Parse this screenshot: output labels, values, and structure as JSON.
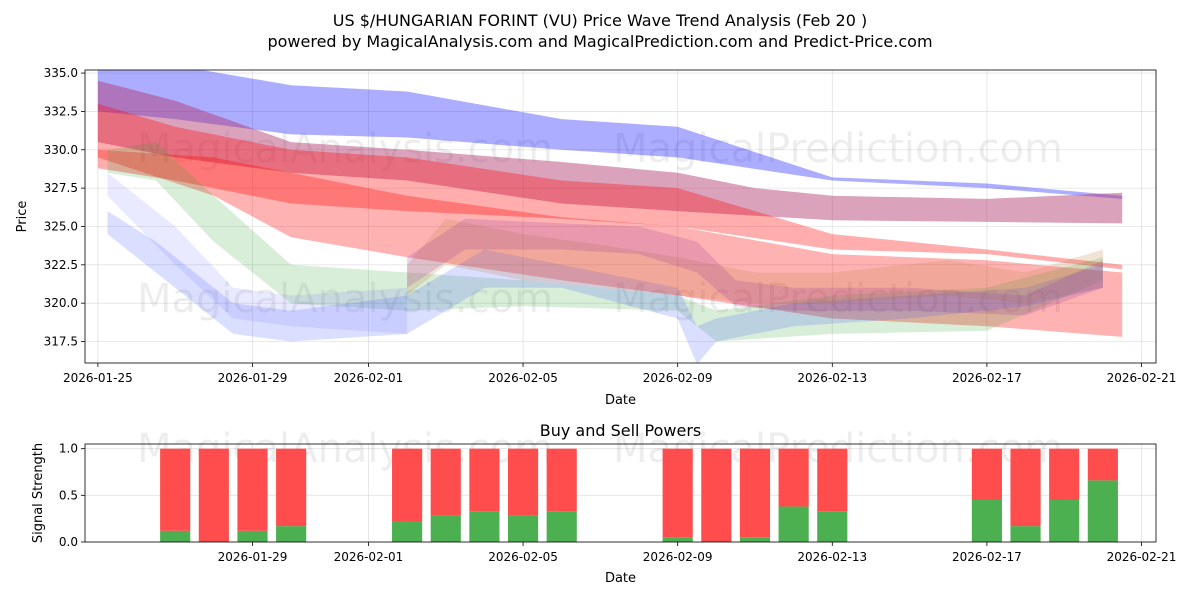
{
  "title_line1": "US $/HUNGARIAN FORINT (VU) Price Wave Trend Analysis (Feb 20 )",
  "title_line2": "powered by MagicalAnalysis.com and MagicalPrediction.com and Predict-Price.com",
  "watermarks": [
    "MagicalAnalysis.com",
    "MagicalPrediction.com"
  ],
  "chart_data": [
    {
      "type": "area",
      "title": "",
      "xlabel": "Date",
      "ylabel": "Price",
      "ylim": [
        316.1,
        335.2
      ],
      "xlim": [
        "2026-01-24T16:00",
        "2026-02-21T09:00"
      ],
      "grid": true,
      "xticks": [
        "2026-01-25",
        "2026-01-29",
        "2026-02-01",
        "2026-02-05",
        "2026-02-09",
        "2026-02-13",
        "2026-02-17",
        "2026-02-21"
      ],
      "yticks": [
        317.5,
        320.0,
        322.5,
        325.0,
        327.5,
        330.0,
        332.5,
        335.0
      ],
      "series": [
        {
          "name": "blue long-term band",
          "color": "#0000ff",
          "opacity": 0.32,
          "x": [
            "2026-01-25",
            "2026-01-27",
            "2026-01-30",
            "2026-02-02",
            "2026-02-06",
            "2026-02-09",
            "2026-02-13",
            "2026-02-17",
            "2026-02-20T12:00"
          ],
          "upper": [
            336.0,
            335.5,
            334.2,
            333.8,
            332.0,
            331.5,
            328.2,
            327.8,
            327.0
          ],
          "lower": [
            332.5,
            332.0,
            331.0,
            330.8,
            330.0,
            329.5,
            328.0,
            327.5,
            326.8
          ]
        },
        {
          "name": "purple long-term band",
          "color": "#b0306a",
          "opacity": 0.45,
          "x": [
            "2026-01-25",
            "2026-01-27",
            "2026-01-30",
            "2026-02-02",
            "2026-02-06",
            "2026-02-09",
            "2026-02-11",
            "2026-02-13",
            "2026-02-17",
            "2026-02-20T12:00"
          ],
          "upper": [
            334.5,
            333.2,
            330.5,
            330.0,
            329.2,
            328.5,
            327.5,
            327.0,
            326.8,
            327.2
          ],
          "lower": [
            330.5,
            329.5,
            328.5,
            328.0,
            326.5,
            326.0,
            325.7,
            325.4,
            325.3,
            325.2
          ]
        },
        {
          "name": "red long-term band",
          "color": "#ff0000",
          "opacity": 0.32,
          "x": [
            "2026-01-25",
            "2026-01-27",
            "2026-01-30",
            "2026-02-02",
            "2026-02-06",
            "2026-02-09",
            "2026-02-13",
            "2026-02-17",
            "2026-02-20T12:00"
          ],
          "upper": [
            333.0,
            331.5,
            330.0,
            329.5,
            328.0,
            327.5,
            324.5,
            323.5,
            322.5
          ],
          "lower": [
            328.8,
            328.0,
            326.5,
            326.0,
            325.5,
            325.0,
            323.5,
            323.2,
            322.2
          ]
        },
        {
          "name": "red wide band",
          "color": "#ff0000",
          "opacity": 0.3,
          "x": [
            "2026-01-25",
            "2026-01-28",
            "2026-01-30",
            "2026-02-02",
            "2026-02-06",
            "2026-02-09",
            "2026-02-13",
            "2026-02-17",
            "2026-02-20T12:00"
          ],
          "upper": [
            330.0,
            329.5,
            328.5,
            327.0,
            325.6,
            325.0,
            323.2,
            322.8,
            322.0
          ],
          "lower": [
            329.5,
            327.0,
            324.3,
            323.0,
            321.5,
            320.5,
            319.0,
            318.5,
            317.8
          ]
        },
        {
          "name": "green wave band",
          "color": "#2ca02c",
          "opacity": 0.18,
          "x": [
            "2026-01-25T06:00",
            "2026-01-26T12:00",
            "2026-01-28",
            "2026-01-30",
            "2026-02-02",
            "2026-02-05",
            "2026-02-09",
            "2026-02-10",
            "2026-02-13",
            "2026-02-17",
            "2026-02-20"
          ],
          "upper": [
            330.0,
            330.5,
            327.0,
            322.5,
            322.0,
            321.5,
            320.5,
            319.5,
            320.5,
            321.0,
            323.0
          ],
          "lower": [
            328.5,
            328.0,
            324.0,
            320.0,
            319.5,
            319.8,
            319.5,
            317.5,
            318.0,
            318.2,
            321.5
          ]
        },
        {
          "name": "blue wave band",
          "color": "#3050ff",
          "opacity": 0.18,
          "x": [
            "2026-01-25T06:00",
            "2026-01-26T12:00",
            "2026-01-28T12:00",
            "2026-01-30",
            "2026-02-02",
            "2026-02-04",
            "2026-02-06",
            "2026-02-09",
            "2026-02-09T12:00",
            "2026-02-10",
            "2026-02-12",
            "2026-02-15",
            "2026-02-18",
            "2026-02-20"
          ],
          "upper": [
            326.0,
            324.0,
            320.0,
            319.5,
            320.5,
            323.5,
            322.5,
            321.0,
            318.5,
            319.0,
            320.0,
            320.5,
            321.0,
            322.5
          ],
          "lower": [
            324.5,
            322.0,
            318.0,
            317.5,
            318.0,
            321.0,
            321.0,
            319.0,
            316.0,
            317.5,
            318.5,
            319.0,
            319.8,
            321.0
          ]
        },
        {
          "name": "lavender wave band",
          "color": "#6a6aff",
          "opacity": 0.15,
          "x": [
            "2026-01-25T06:00",
            "2026-01-27",
            "2026-01-28T12:00",
            "2026-01-30",
            "2026-02-02"
          ],
          "upper": [
            328.5,
            325.0,
            321.0,
            320.5,
            321.0
          ],
          "lower": [
            327.0,
            322.5,
            319.0,
            318.5,
            318.0
          ]
        },
        {
          "name": "orange-brown wave band",
          "color": "#c08040",
          "opacity": 0.22,
          "x": [
            "2026-02-02",
            "2026-02-03",
            "2026-02-05",
            "2026-02-07",
            "2026-02-09",
            "2026-02-11",
            "2026-02-13",
            "2026-02-16",
            "2026-02-18",
            "2026-02-20"
          ],
          "upper": [
            322.5,
            325.5,
            324.5,
            323.8,
            323.0,
            322.0,
            322.0,
            322.8,
            322.0,
            323.5
          ],
          "lower": [
            320.5,
            322.5,
            321.5,
            321.0,
            320.5,
            320.0,
            320.0,
            320.5,
            320.0,
            321.0
          ]
        },
        {
          "name": "purple wave band",
          "color": "#9030a0",
          "opacity": 0.2,
          "x": [
            "2026-02-02",
            "2026-02-03T12:00",
            "2026-02-06",
            "2026-02-08",
            "2026-02-09T12:00",
            "2026-02-10T12:00",
            "2026-02-12",
            "2026-02-15",
            "2026-02-18",
            "2026-02-20"
          ],
          "upper": [
            323.0,
            325.5,
            325.2,
            325.0,
            324.0,
            321.5,
            321.0,
            321.0,
            320.5,
            322.8
          ],
          "lower": [
            321.0,
            323.5,
            323.5,
            323.2,
            322.0,
            319.8,
            319.5,
            319.5,
            319.2,
            321.0
          ]
        }
      ]
    },
    {
      "type": "bar",
      "title": "Buy and Sell Powers",
      "xlabel": "Date",
      "ylabel": "Signal Strength",
      "ylim": [
        0,
        1.05
      ],
      "xlim": [
        "2026-01-24T16:00",
        "2026-02-21T09:00"
      ],
      "grid": true,
      "xticks": [
        "2026-01-29",
        "2026-02-01",
        "2026-02-05",
        "2026-02-09",
        "2026-02-13",
        "2026-02-17",
        "2026-02-21"
      ],
      "yticks": [
        0.0,
        0.5,
        1.0
      ],
      "buy_color": "#4caf50",
      "sell_color": "#ff4d4d",
      "dates": [
        "2026-01-27",
        "2026-01-28",
        "2026-01-29",
        "2026-01-30",
        "2026-02-02",
        "2026-02-03",
        "2026-02-04",
        "2026-02-05",
        "2026-02-06",
        "2026-02-09",
        "2026-02-10",
        "2026-02-11",
        "2026-02-12",
        "2026-02-13",
        "2026-02-17",
        "2026-02-18",
        "2026-02-19",
        "2026-02-20"
      ],
      "buy": [
        0.12,
        0.0,
        0.12,
        0.17,
        0.22,
        0.28,
        0.33,
        0.28,
        0.33,
        0.05,
        0.0,
        0.05,
        0.38,
        0.33,
        0.45,
        0.17,
        0.45,
        0.66
      ],
      "sell": [
        0.88,
        1.0,
        0.88,
        0.83,
        0.78,
        0.72,
        0.67,
        0.72,
        0.67,
        0.95,
        1.0,
        0.95,
        0.62,
        0.67,
        0.55,
        0.83,
        0.55,
        0.34
      ]
    }
  ]
}
